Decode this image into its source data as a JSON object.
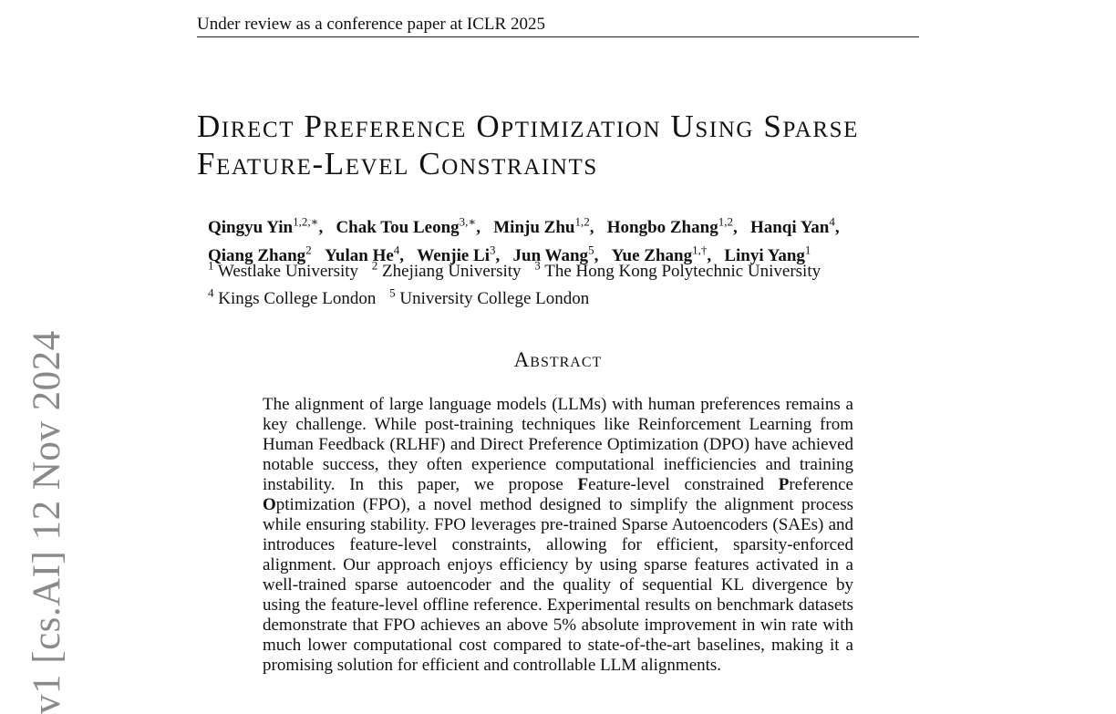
{
  "header": {
    "running_head": "Under review as a conference paper at ICLR 2025"
  },
  "paper": {
    "title_line1": "Direct Preference Optimization Using Sparse",
    "title_line2": "Feature-Level Constraints",
    "authors": [
      {
        "name": "Qingyu Yin",
        "sup": "1,2,∗",
        "sep": ","
      },
      {
        "name": "Chak Tou Leong",
        "sup": "3,∗",
        "sep": ","
      },
      {
        "name": "Minju Zhu",
        "sup": "1,2",
        "sep": ","
      },
      {
        "name": "Hongbo Zhang",
        "sup": "1,2",
        "sep": ","
      },
      {
        "name": "Hanqi Yan",
        "sup": "4",
        "sep": ","
      },
      {
        "name": "Qiang Zhang",
        "sup": "2",
        "sep": ""
      },
      {
        "name": "Yulan He",
        "sup": "4",
        "sep": ","
      },
      {
        "name": "Wenjie Li",
        "sup": "3",
        "sep": ","
      },
      {
        "name": "Jun Wang",
        "sup": "5",
        "sep": ","
      },
      {
        "name": "Yue Zhang",
        "sup": "1,†",
        "sep": ","
      },
      {
        "name": "Linyi Yang",
        "sup": "1",
        "sep": ""
      }
    ],
    "affiliations": [
      {
        "sup": "1",
        "name": "Westlake University"
      },
      {
        "sup": "2",
        "name": "Zhejiang University"
      },
      {
        "sup": "3",
        "name": "The Hong Kong Polytechnic University"
      },
      {
        "sup": "4",
        "name": "Kings College London"
      },
      {
        "sup": "5",
        "name": "University College London"
      }
    ],
    "abstract_heading": "Abstract",
    "abstract": {
      "p1": "The alignment of large language models (LLMs) with human preferences remains a key challenge.  While post-training techniques like Reinforcement Learning from Human Feedback (RLHF) and Direct Preference Optimization (DPO) have achieved notable success, they often experience computational inefficiencies and training instability. In this paper, we propose ",
      "f_letter": "F",
      "f_rest": "eature-level constrained ",
      "p_letter": "P",
      "p_rest": "reference ",
      "o_letter": "O",
      "o_rest": "ptimization (FPO), a novel method designed to simplify the alignment process while ensuring stability. FPO leverages pre-trained Sparse Autoencoders (SAEs) and introduces feature-level constraints, allowing for efficient, sparsity-enforced alignment.  Our approach enjoys efficiency by using sparse features activated in a well-trained sparse autoencoder and the quality of sequential KL divergence by using the feature-level offline reference.  Experimental results on benchmark datasets demonstrate that FPO achieves an above 5% absolute improvement in win rate with much lower computational cost compared to state-of-the-art baselines, making it a promising solution for efficient and controllable LLM alignments."
    }
  },
  "arxiv_stamp": "v1  [cs.AI]  12 Nov 2024"
}
